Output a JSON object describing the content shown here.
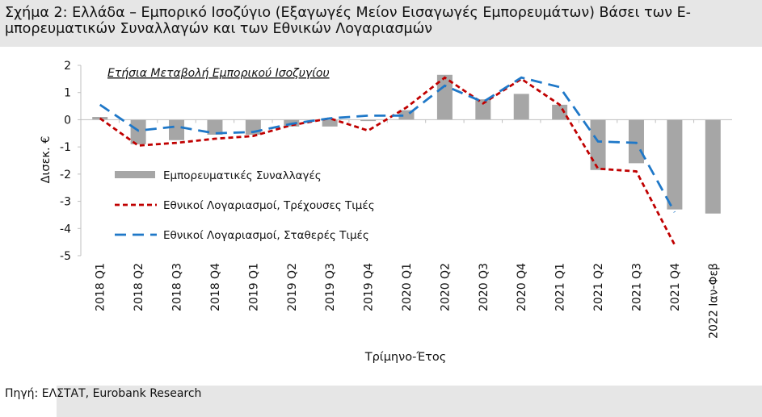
{
  "title_line1": "Σχήμα 2: Ελλάδα – Εμπορικό Ισοζύγιο (Εξαγωγές Μείον Εισαγωγές Εμπορευμάτων) Βάσει των Ε-",
  "title_line2": "μπορευματικών Συναλλαγών και των Εθνικών Λογαριασμών",
  "source": "Πηγή: ΕΛΣΤΑΤ, Eurobank Research",
  "chart_data": {
    "type": "bar",
    "annotation": "Ετήσια Μεταβολή Εμπορικού Ισοζυγίου",
    "xlabel": "Τρίμηνο-Έτος",
    "ylabel": "Δισεκ. €",
    "ylim": [
      -5,
      2
    ],
    "yticks": [
      2,
      1,
      0,
      -1,
      -2,
      -3,
      -4,
      -5
    ],
    "categories": [
      "2018 Q1",
      "2018 Q2",
      "2018 Q3",
      "2018 Q4",
      "2019 Q1",
      "2019 Q2",
      "2019 Q3",
      "2019 Q4",
      "2020 Q1",
      "2020 Q2",
      "2020 Q3",
      "2020 Q4",
      "2021 Q1",
      "2021 Q2",
      "2021 Q3",
      "2021 Q4",
      "2022 Ιαν-Φεβ"
    ],
    "legend_position": "middle-left",
    "series": [
      {
        "name": "Εμπορευματικές Συναλλαγές",
        "kind": "bar",
        "color": "#a6a6a6",
        "values": [
          0.1,
          -0.9,
          -0.75,
          -0.55,
          -0.55,
          -0.25,
          -0.25,
          -0.05,
          0.35,
          1.65,
          0.75,
          0.95,
          0.55,
          -1.85,
          -1.6,
          -3.3,
          -3.45
        ]
      },
      {
        "name": "Εθνικοί Λογαριασμοί, Τρέχουσες Τιμές",
        "kind": "line",
        "dash": "short",
        "color": "#c00000",
        "values": [
          0.05,
          -0.95,
          -0.85,
          -0.7,
          -0.6,
          -0.2,
          0.05,
          -0.4,
          0.45,
          1.55,
          0.6,
          1.5,
          0.55,
          -1.8,
          -1.9,
          -4.6,
          null
        ]
      },
      {
        "name": "Εθνικοί Λογαριασμοί, Σταθερές Τιμές",
        "kind": "line",
        "dash": "long",
        "color": "#1f78c8",
        "values": [
          0.55,
          -0.4,
          -0.25,
          -0.5,
          -0.45,
          -0.15,
          0.05,
          0.15,
          0.15,
          1.25,
          0.65,
          1.55,
          1.2,
          -0.8,
          -0.85,
          -3.4,
          null
        ]
      }
    ]
  }
}
